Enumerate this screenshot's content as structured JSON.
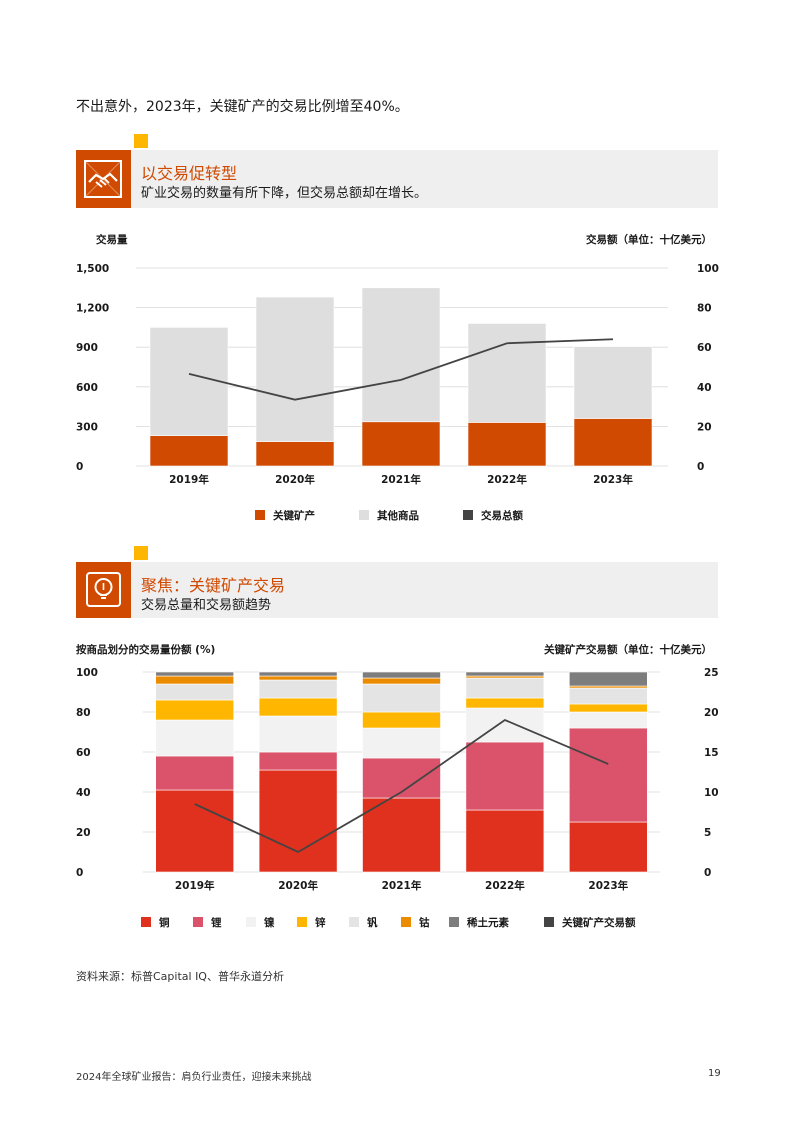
{
  "intro_text": "不出意外，2023年，关键矿产的交易比例增至40%。",
  "section1": {
    "title": "以交易促转型",
    "subtitle": "矿业交易的数量有所下降，但交易总额却在增长。"
  },
  "section2": {
    "title": "聚焦：关键矿产交易",
    "subtitle": "交易总量和交易额趋势"
  },
  "colors": {
    "accent": "#d04a02",
    "yellow": "#ffb600",
    "band": "#efefef",
    "other": "#dedede",
    "line": "#444444",
    "copper": "#e0301e",
    "lithium": "#db536a",
    "nickel": "#f2f2f2",
    "zinc": "#ffb600",
    "vanadium": "#e4e4e4",
    "cobalt": "#eb8c00",
    "rare_earth": "#7d7d7d"
  },
  "icons": {
    "section1": "handshake-icon",
    "section2": "lightbulb-icon"
  },
  "chart_data": [
    {
      "type": "bar",
      "stacked": true,
      "categories": [
        "2019年",
        "2020年",
        "2021年",
        "2022年",
        "2023年"
      ],
      "series": [
        {
          "name": "关键矿产",
          "values": [
            230,
            185,
            335,
            330,
            360
          ],
          "color": "#d04a02"
        },
        {
          "name": "其他商品",
          "values": [
            820,
            1095,
            1015,
            750,
            545
          ],
          "color": "#dedede"
        }
      ],
      "line_series": {
        "name": "交易总额",
        "values": [
          46.5,
          33.5,
          43.5,
          62,
          64
        ],
        "axis": "right",
        "color": "#444444"
      },
      "ylabel": "交易量",
      "ylabel_right": "交易额（单位：十亿美元）",
      "ylim": [
        0,
        1500
      ],
      "yticks": [
        "1,500",
        "1,200",
        "900",
        "600",
        "300",
        "0"
      ],
      "ylim_right": [
        0,
        100
      ],
      "yticks_right": [
        "100",
        "80",
        "60",
        "40",
        "20",
        "0"
      ],
      "grid": true,
      "legend": "bottom"
    },
    {
      "type": "bar",
      "stacked": true,
      "categories": [
        "2019年",
        "2020年",
        "2021年",
        "2022年",
        "2023年"
      ],
      "series": [
        {
          "name": "铜",
          "values": [
            41,
            51,
            37,
            31,
            25
          ],
          "color": "#e0301e"
        },
        {
          "name": "锂",
          "values": [
            17,
            9,
            20,
            34,
            47
          ],
          "color": "#db536a"
        },
        {
          "name": "镍",
          "values": [
            18,
            18,
            15,
            17,
            8
          ],
          "color": "#f2f2f2"
        },
        {
          "name": "锌",
          "values": [
            10,
            9,
            8,
            5,
            4
          ],
          "color": "#ffb600"
        },
        {
          "name": "钒",
          "values": [
            8,
            9,
            14,
            10,
            8
          ],
          "color": "#e4e4e4"
        },
        {
          "name": "钴",
          "values": [
            4,
            2,
            3,
            1,
            1
          ],
          "color": "#eb8c00"
        },
        {
          "name": "稀土元素",
          "values": [
            2,
            2,
            3,
            2,
            7
          ],
          "color": "#7d7d7d"
        }
      ],
      "line_series": {
        "name": "关键矿产交易额",
        "values": [
          8.5,
          2.5,
          10,
          19,
          13.5
        ],
        "axis": "right",
        "color": "#444444"
      },
      "ylabel": "按商品划分的交易量份额 (%)",
      "ylabel_right": "关键矿产交易额（单位：十亿美元）",
      "ylim": [
        0,
        100
      ],
      "yticks": [
        "100",
        "80",
        "60",
        "40",
        "20",
        "0"
      ],
      "ylim_right": [
        0,
        25
      ],
      "yticks_right": [
        "25",
        "20",
        "15",
        "10",
        "5",
        "0"
      ],
      "grid": true,
      "legend": "bottom"
    }
  ],
  "source": "资料来源：标普Capital IQ、普华永道分析",
  "footer": "2024年全球矿业报告：肩负行业责任，迎接未来挑战",
  "page_number": "19"
}
